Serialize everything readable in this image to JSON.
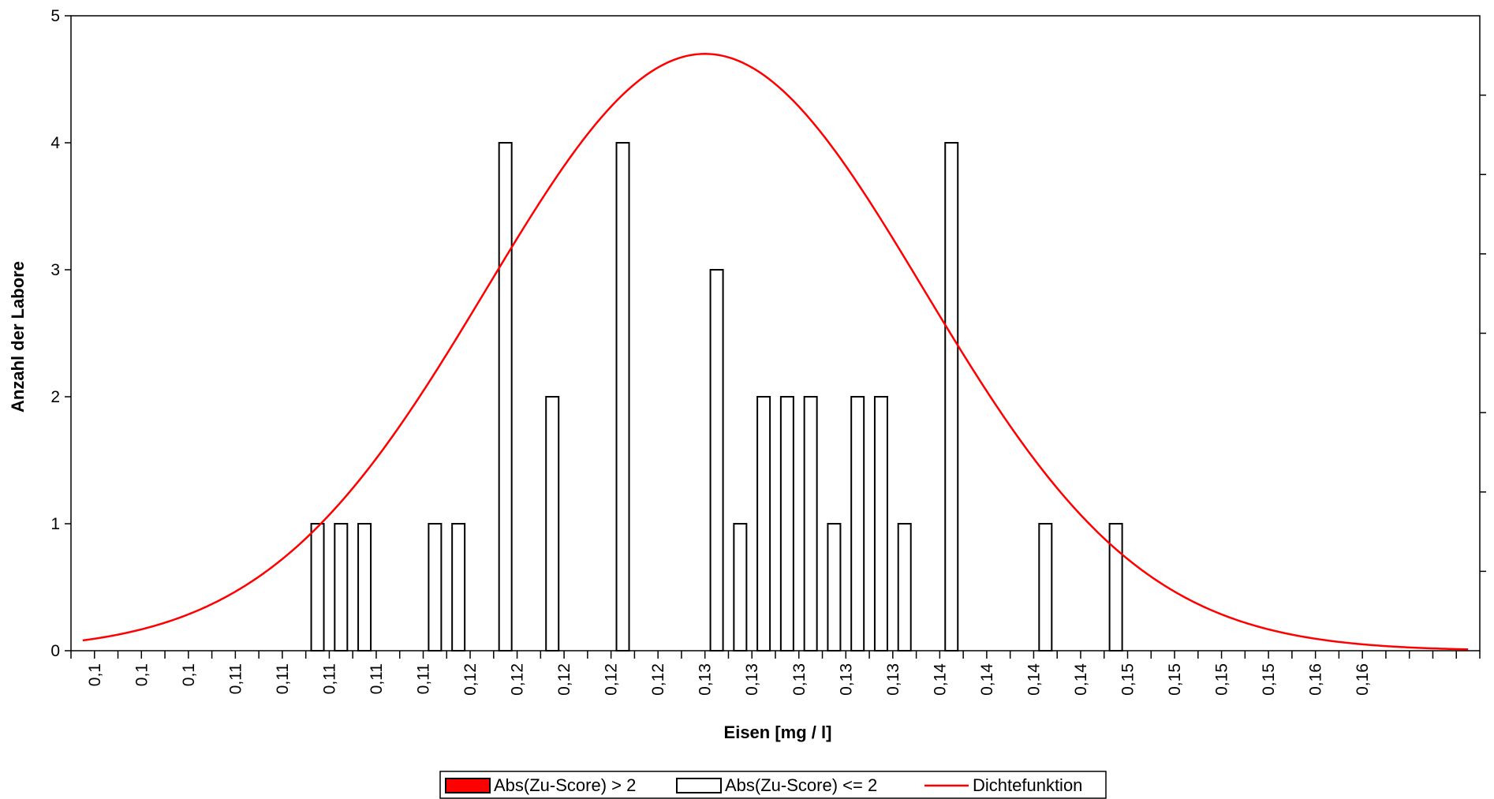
{
  "chart_data": {
    "type": "bar",
    "title": "",
    "xlabel": "Eisen [mg / l]",
    "ylabel": "Anzahl der Labore",
    "ylim": [
      0,
      5
    ],
    "y_ticks": [
      "0",
      "1",
      "2",
      "3",
      "4",
      "5"
    ],
    "x_tick_labels": [
      "0,1",
      "0,1",
      "0,1",
      "0,11",
      "0,11",
      "0,11",
      "0,11",
      "0,11",
      "0,12",
      "0,12",
      "0,12",
      "0,12",
      "0,12",
      "0,13",
      "0,13",
      "0,13",
      "0,13",
      "0,13",
      "0,14",
      "0,14",
      "0,14",
      "0,14",
      "0,15",
      "0,15",
      "0,15",
      "0,15",
      "0,16",
      "0,16"
    ],
    "bars": [
      {
        "pos": 10.5,
        "value": 1,
        "group": "low"
      },
      {
        "pos": 11.5,
        "value": 1,
        "group": "low"
      },
      {
        "pos": 12.5,
        "value": 1,
        "group": "low"
      },
      {
        "pos": 15.5,
        "value": 1,
        "group": "low"
      },
      {
        "pos": 16.5,
        "value": 1,
        "group": "low"
      },
      {
        "pos": 18.5,
        "value": 4,
        "group": "low"
      },
      {
        "pos": 20.5,
        "value": 2,
        "group": "low"
      },
      {
        "pos": 23.5,
        "value": 4,
        "group": "low"
      },
      {
        "pos": 27.5,
        "value": 3,
        "group": "low"
      },
      {
        "pos": 28.5,
        "value": 1,
        "group": "low"
      },
      {
        "pos": 29.5,
        "value": 2,
        "group": "low"
      },
      {
        "pos": 30.5,
        "value": 2,
        "group": "low"
      },
      {
        "pos": 31.5,
        "value": 2,
        "group": "low"
      },
      {
        "pos": 32.5,
        "value": 1,
        "group": "low"
      },
      {
        "pos": 33.5,
        "value": 2,
        "group": "low"
      },
      {
        "pos": 34.5,
        "value": 2,
        "group": "low"
      },
      {
        "pos": 35.5,
        "value": 1,
        "group": "low"
      },
      {
        "pos": 37.5,
        "value": 4,
        "group": "low"
      },
      {
        "pos": 41.5,
        "value": 1,
        "group": "low"
      },
      {
        "pos": 44.5,
        "value": 1,
        "group": "low"
      }
    ],
    "density": {
      "mean_pos": 27.0,
      "sd_pos": 9.3,
      "peak": 4.7,
      "start_pos": 0.5,
      "end_pos": 59.5
    },
    "legend": {
      "placement": "bottom-center",
      "items": [
        {
          "key": "high",
          "label": "Abs(Zu-Score) > 2",
          "color": "#ff0000",
          "kind": "box"
        },
        {
          "key": "low",
          "label": "Abs(Zu-Score) <= 2",
          "color": "#ffffff",
          "kind": "box"
        },
        {
          "key": "density",
          "label": "Dichtefunktion",
          "color": "#ff0000",
          "kind": "line"
        }
      ]
    },
    "colors": {
      "bar_low_fill": "#ffffff",
      "bar_high_fill": "#ff0000",
      "bar_stroke": "#000000",
      "density": "#ff0000",
      "axis": "#000000"
    }
  }
}
